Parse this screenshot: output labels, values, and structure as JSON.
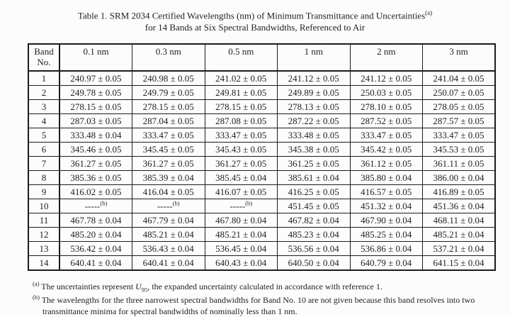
{
  "title": {
    "line1": "Table 1.  SRM 2034 Certified Wavelengths (nm) of Minimum Transmittance and Uncertainties",
    "line1_sup": "(a)",
    "line2": "for 14 Bands at Six Spectral Bandwidths, Referenced to Air"
  },
  "table": {
    "header": [
      "Band No.",
      "0.1 nm",
      "0.3 nm",
      "0.5 nm",
      "1 nm",
      "2 nm",
      "3 nm"
    ],
    "rows": [
      {
        "band": "1",
        "cells": [
          "240.97 ± 0.05",
          "240.98 ± 0.05",
          "241.02 ± 0.05",
          "241.12 ± 0.05",
          "241.12 ± 0.05",
          "241.04 ± 0.05"
        ]
      },
      {
        "band": "2",
        "cells": [
          "249.78 ± 0.05",
          "249.79 ± 0.05",
          "249.81 ± 0.05",
          "249.89 ± 0.05",
          "250.03 ± 0.05",
          "250.07 ± 0.05"
        ]
      },
      {
        "band": "3",
        "cells": [
          "278.15 ± 0.05",
          "278.15 ± 0.05",
          "278.15 ± 0.05",
          "278.13 ± 0.05",
          "278.10 ± 0.05",
          "278.05 ± 0.05"
        ]
      },
      {
        "band": "4",
        "cells": [
          "287.03 ± 0.05",
          "287.04 ± 0.05",
          "287.08 ± 0.05",
          "287.22 ± 0.05",
          "287.52 ± 0.05",
          "287.57 ± 0.05"
        ]
      },
      {
        "band": "5",
        "cells": [
          "333.48 ± 0.04",
          "333.47 ± 0.05",
          "333.47 ± 0.05",
          "333.48 ± 0.05",
          "333.47 ± 0.05",
          "333.47 ± 0.05"
        ]
      },
      {
        "band": "6",
        "cells": [
          "345.46 ± 0.05",
          "345.45 ± 0.05",
          "345.43 ± 0.05",
          "345.38 ± 0.05",
          "345.42 ± 0.05",
          "345.53 ± 0.05"
        ]
      },
      {
        "band": "7",
        "cells": [
          "361.27 ± 0.05",
          "361.27 ± 0.05",
          "361.27 ± 0.05",
          "361.25 ± 0.05",
          "361.12 ± 0.05",
          "361.11 ± 0.05"
        ]
      },
      {
        "band": "8",
        "cells": [
          "385.36 ± 0.05",
          "385.39 ± 0.04",
          "385.45 ± 0.04",
          "385.61 ± 0.04",
          "385.80 ± 0.04",
          "386.00 ± 0.04"
        ]
      },
      {
        "band": "9",
        "cells": [
          "416.02 ± 0.05",
          "416.04 ± 0.05",
          "416.07 ± 0.05",
          "416.25 ± 0.05",
          "416.57 ± 0.05",
          "416.89 ± 0.05"
        ]
      },
      {
        "band": "10",
        "cells": [
          "-----(b)",
          "-----(b)",
          "-----(b)",
          "451.45 ± 0.05",
          "451.32 ± 0.04",
          "451.36 ± 0.04"
        ]
      },
      {
        "band": "11",
        "cells": [
          "467.78 ± 0.04",
          "467.79 ± 0.04",
          "467.80 ± 0.04",
          "467.82 ± 0.04",
          "467.90 ± 0.04",
          "468.11 ± 0.04"
        ]
      },
      {
        "band": "12",
        "cells": [
          "485.20 ± 0.04",
          "485.21 ± 0.04",
          "485.21 ± 0.04",
          "485.23 ± 0.04",
          "485.25 ± 0.04",
          "485.21 ± 0.04"
        ]
      },
      {
        "band": "13",
        "cells": [
          "536.42 ± 0.04",
          "536.43 ± 0.04",
          "536.45 ± 0.04",
          "536.56 ± 0.04",
          "536.86 ± 0.04",
          "537.21 ± 0.04"
        ]
      },
      {
        "band": "14",
        "cells": [
          "640.41 ± 0.04",
          "640.41 ± 0.04",
          "640.43 ± 0.04",
          "640.50 ± 0.04",
          "640.79 ± 0.04",
          "641.15 ± 0.04"
        ]
      }
    ]
  },
  "footnotes": [
    {
      "marker": "(a)",
      "pre": "The uncertainties represent ",
      "symbol": "U",
      "symbol_sub": "95",
      "post": ", the expanded uncertainty calculated in accordance with reference 1."
    },
    {
      "marker": "(b)",
      "text": "The wavelengths for the three narrowest spectral bandwidths for Band No. 10 are not given because this band resolves into two transmittance minima for spectral bandwidths of nominally less than 1 nm."
    }
  ]
}
